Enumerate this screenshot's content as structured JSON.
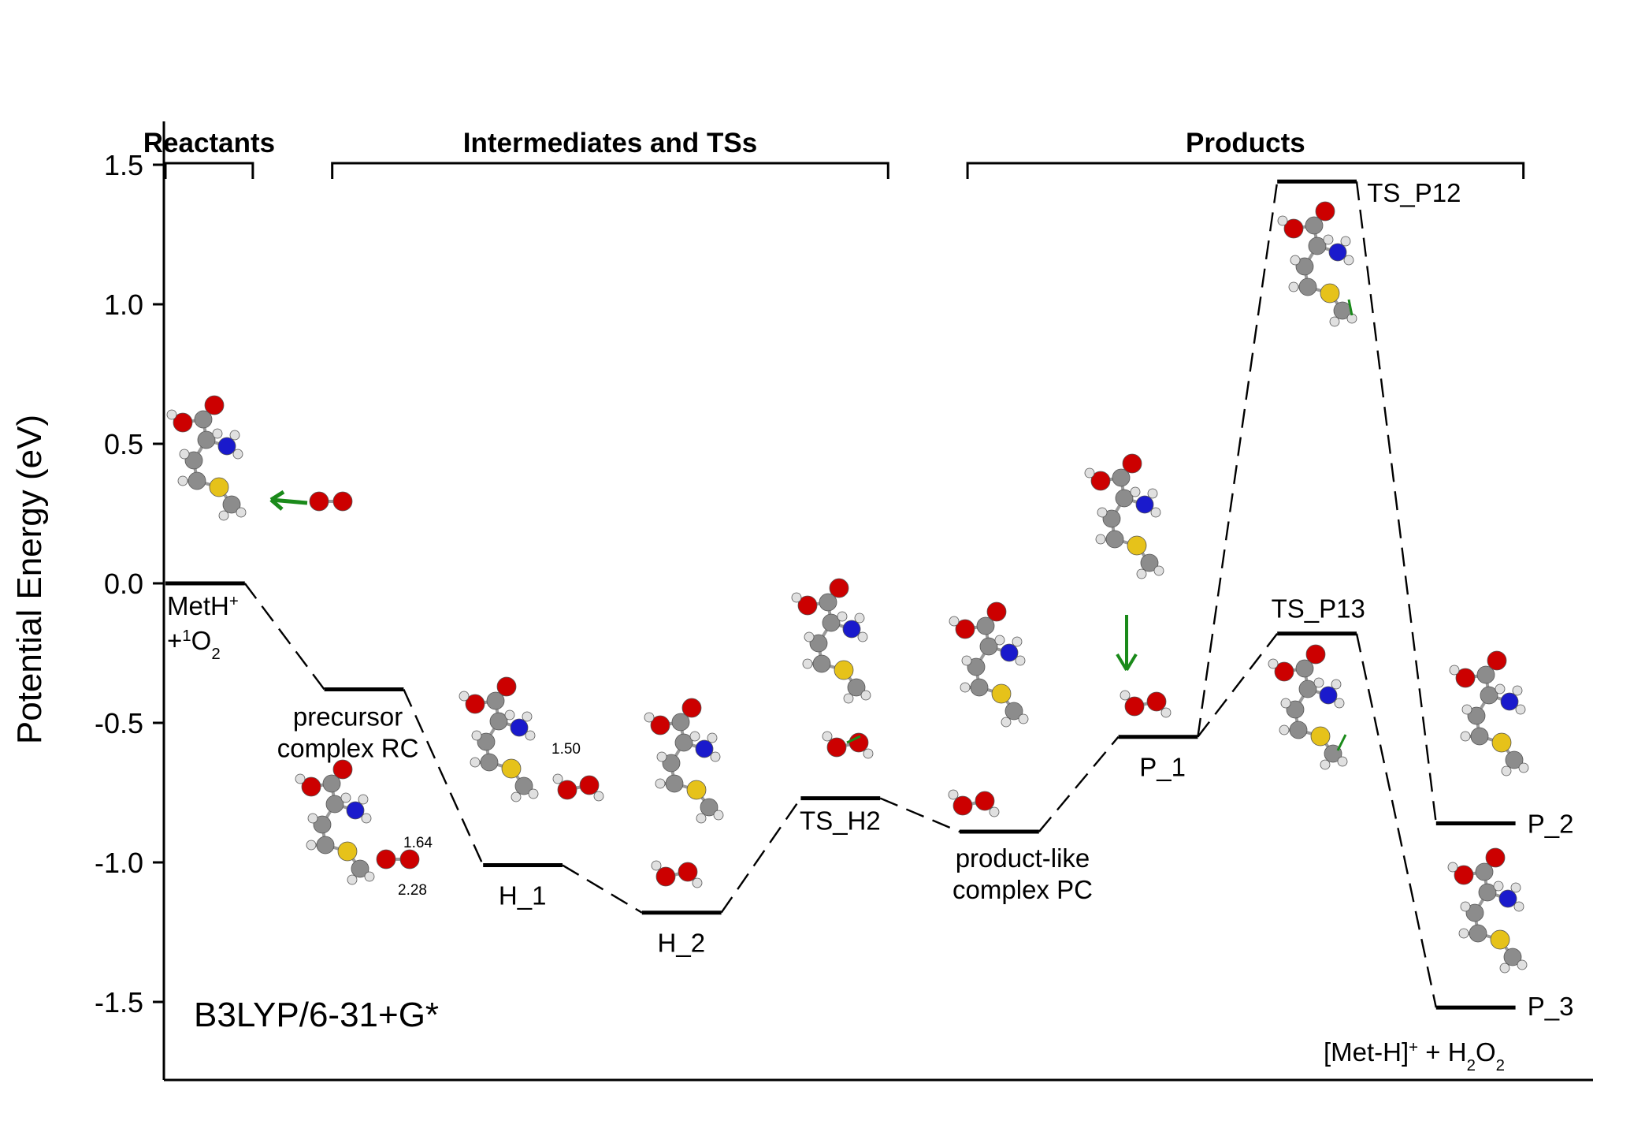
{
  "chart_data": {
    "type": "line",
    "title": "",
    "method_label": "B3LYP/6-31+G*",
    "ylabel": "Potential Energy (eV)",
    "xlabel": "",
    "ylim": [
      -1.75,
      1.6
    ],
    "yticks": [
      1.5,
      1.0,
      0.5,
      0.0,
      -0.5,
      -1.0,
      -1.5
    ],
    "ytick_labels": [
      "1.5",
      "1.0",
      "0.5",
      "0.0",
      "-0.5",
      "-1.0",
      "-1.5"
    ],
    "sections": [
      {
        "label": "Reactants",
        "x_range": [
          0,
          1.1
        ]
      },
      {
        "label": "Intermediates and TSs",
        "x_range": [
          2.1,
          9.1
        ]
      },
      {
        "label": "Products",
        "x_range": [
          10.1,
          17.1
        ]
      }
    ],
    "levels": [
      {
        "id": "R",
        "energy": 0.0,
        "x_range": [
          0,
          1.0
        ],
        "label": "MetH+ +1O2",
        "label_parts": {
          "a": "MetH",
          "a_sup": "+",
          "b": "+",
          "b_sup": "1",
          "c": "O",
          "c_sub": "2"
        }
      },
      {
        "id": "RC",
        "energy": -0.38,
        "x_range": [
          2.0,
          3.0
        ],
        "label": "precursor complex RC",
        "label_lines": [
          "precursor",
          "complex RC"
        ]
      },
      {
        "id": "H_1",
        "energy": -1.01,
        "x_range": [
          4.0,
          5.0
        ],
        "label": "H_1"
      },
      {
        "id": "H_2",
        "energy": -1.18,
        "x_range": [
          6.0,
          7.0
        ],
        "label": "H_2"
      },
      {
        "id": "TS_H2",
        "energy": -0.77,
        "x_range": [
          8.0,
          9.0
        ],
        "label": "TS_H2"
      },
      {
        "id": "PC",
        "energy": -0.89,
        "x_range": [
          10.0,
          11.0
        ],
        "label": "product-like complex PC",
        "label_lines": [
          "product-like",
          "complex PC"
        ]
      },
      {
        "id": "P_1",
        "energy": -0.55,
        "x_range": [
          12.0,
          13.0
        ],
        "label": "P_1"
      },
      {
        "id": "TS_P12",
        "energy": 1.44,
        "x_range": [
          14.0,
          15.0
        ],
        "label": "TS_P12"
      },
      {
        "id": "TS_P13",
        "energy": -0.18,
        "x_range": [
          14.0,
          15.0
        ],
        "label": "TS_P13"
      },
      {
        "id": "P_2",
        "energy": -0.86,
        "x_range": [
          16.0,
          17.0
        ],
        "label": "P_2"
      },
      {
        "id": "P_3",
        "energy": -1.52,
        "x_range": [
          16.0,
          17.0
        ],
        "label": "P_3"
      }
    ],
    "connections": [
      [
        "R",
        "RC"
      ],
      [
        "RC",
        "H_1"
      ],
      [
        "H_1",
        "H_2"
      ],
      [
        "H_2",
        "TS_H2"
      ],
      [
        "TS_H2",
        "PC"
      ],
      [
        "PC",
        "P_1"
      ],
      [
        "P_1",
        "TS_P12"
      ],
      [
        "TS_P12",
        "P_2"
      ],
      [
        "P_1",
        "TS_P13"
      ],
      [
        "TS_P13",
        "P_3"
      ]
    ],
    "annotations": [
      {
        "text": "1.50"
      },
      {
        "text": "1.64"
      },
      {
        "text": "2.28"
      }
    ],
    "footer_label": {
      "a": "[Met-H]",
      "a_sup": "+",
      "b": " + H",
      "b_sub": "2",
      "c": "O",
      "c_sub": "2"
    }
  },
  "colors": {
    "carbon": "#8c8c8c",
    "oxygen": "#cc0000",
    "nitrogen": "#1a1acc",
    "sulfur": "#e6c21a",
    "hydrogen": "#e0e0e0",
    "arrow": "#1a8a1a"
  }
}
